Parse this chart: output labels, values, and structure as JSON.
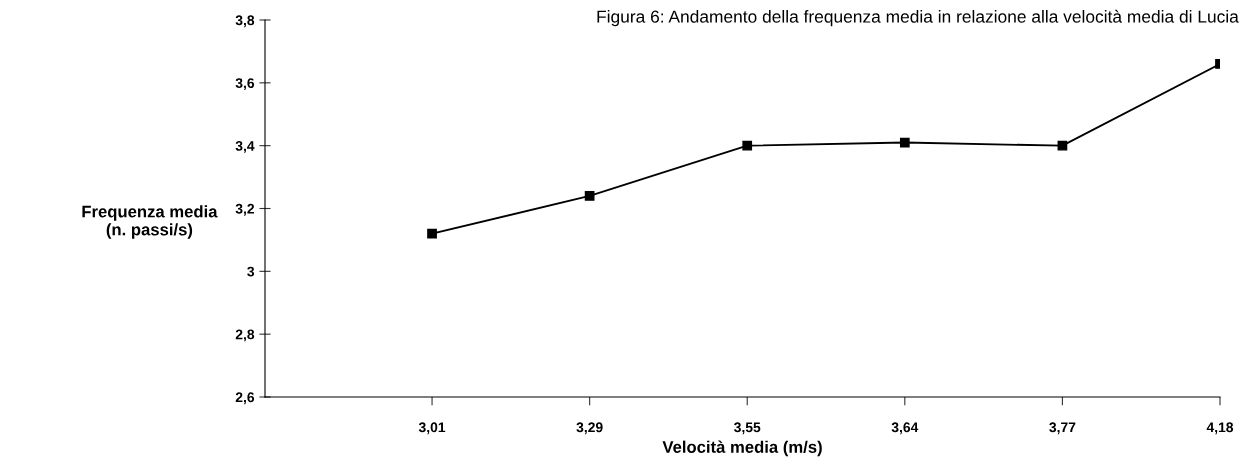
{
  "chart_data": {
    "type": "line",
    "title": "Figura 6: Andamento della frequenza media in relazione alla velocità media di Lucia",
    "xlabel": "Velocità media (m/s)",
    "ylabel": "Frequenza media\n(n. passi/s)",
    "categories": [
      "3,01",
      "3,29",
      "3,55",
      "3,64",
      "3,77",
      "4,18"
    ],
    "series": [
      {
        "color": "#000000",
        "values": [
          3.12,
          3.24,
          3.4,
          3.41,
          3.4,
          3.66
        ]
      }
    ],
    "ylim": [
      2.6,
      3.8
    ],
    "yticks": [
      {
        "value": 2.6,
        "label": "2,6"
      },
      {
        "value": 2.8,
        "label": "2,8"
      },
      {
        "value": 3,
        "label": "3"
      },
      {
        "value": 3.2,
        "label": "3,2"
      },
      {
        "value": 3.4,
        "label": "3,4"
      },
      {
        "value": 3.6,
        "label": "3,6"
      },
      {
        "value": 3.8,
        "label": "3,8"
      }
    ],
    "marker": "square",
    "line_style": "solid",
    "grid": false,
    "legend": false
  }
}
